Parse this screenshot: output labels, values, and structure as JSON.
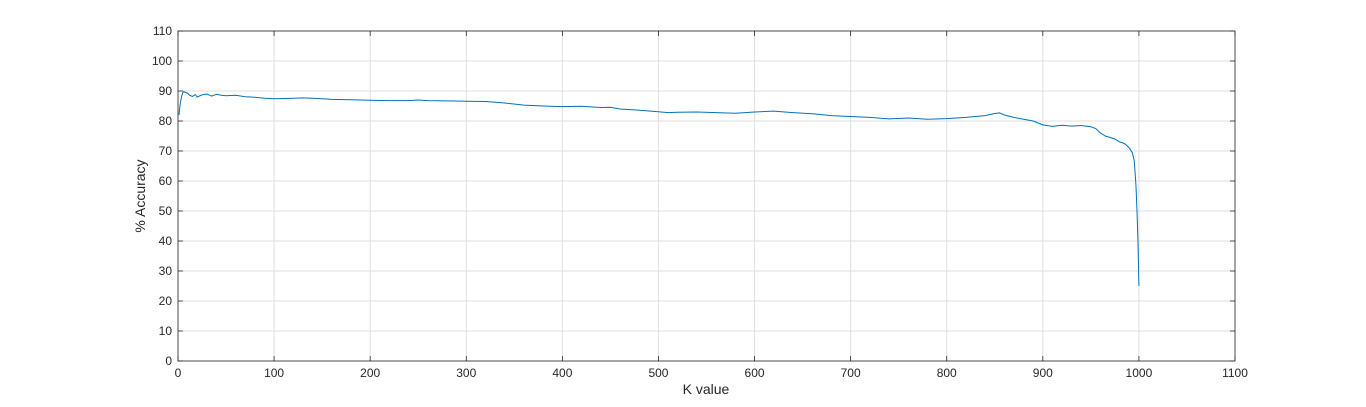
{
  "chart_data": {
    "type": "line",
    "title": "",
    "xlabel": "K value",
    "ylabel": "% Accuracy",
    "xlim": [
      0,
      1100
    ],
    "ylim": [
      0,
      110
    ],
    "xticks": [
      0,
      100,
      200,
      300,
      400,
      500,
      600,
      700,
      800,
      900,
      1000,
      1100
    ],
    "yticks": [
      0,
      10,
      20,
      30,
      40,
      50,
      60,
      70,
      80,
      90,
      100,
      110
    ],
    "grid": true,
    "line_color": "#0072BD",
    "series": [
      {
        "x": [
          1,
          2,
          3,
          4,
          5,
          6,
          8,
          10,
          12,
          15,
          18,
          20,
          25,
          30,
          35,
          40,
          45,
          50,
          55,
          60,
          70,
          80,
          90,
          100,
          110,
          120,
          130,
          140,
          150,
          160,
          180,
          200,
          220,
          240,
          250,
          260,
          280,
          300,
          320,
          340,
          360,
          380,
          400,
          420,
          440,
          450,
          460,
          480,
          500,
          510,
          520,
          540,
          560,
          580,
          600,
          620,
          640,
          660,
          680,
          700,
          720,
          740,
          760,
          780,
          800,
          820,
          840,
          850,
          855,
          860,
          870,
          880,
          890,
          900,
          910,
          920,
          930,
          940,
          950,
          955,
          960,
          965,
          970,
          975,
          980,
          985,
          990,
          993,
          995,
          996,
          997,
          998,
          999,
          1000
        ],
        "y": [
          82,
          85,
          87,
          88.5,
          89.5,
          89.8,
          89.5,
          89.3,
          88.6,
          88.2,
          88.8,
          88.0,
          88.7,
          89.0,
          88.3,
          88.9,
          88.6,
          88.4,
          88.5,
          88.6,
          88.1,
          87.9,
          87.6,
          87.4,
          87.5,
          87.6,
          87.7,
          87.6,
          87.4,
          87.2,
          87.1,
          86.9,
          86.8,
          86.8,
          87.0,
          86.8,
          86.7,
          86.6,
          86.5,
          86.0,
          85.3,
          85.0,
          84.8,
          84.9,
          84.5,
          84.6,
          84.0,
          83.6,
          83.1,
          82.8,
          82.9,
          83.0,
          82.8,
          82.6,
          83.0,
          83.3,
          82.8,
          82.4,
          81.8,
          81.5,
          81.2,
          80.7,
          81.0,
          80.6,
          80.8,
          81.2,
          81.8,
          82.5,
          82.7,
          82.0,
          81.2,
          80.6,
          80.0,
          78.7,
          78.2,
          78.6,
          78.3,
          78.5,
          78.1,
          77.5,
          76.0,
          75.0,
          74.5,
          74.0,
          73.0,
          72.5,
          71.0,
          69.5,
          67,
          63,
          58,
          50,
          40,
          25
        ]
      }
    ]
  }
}
